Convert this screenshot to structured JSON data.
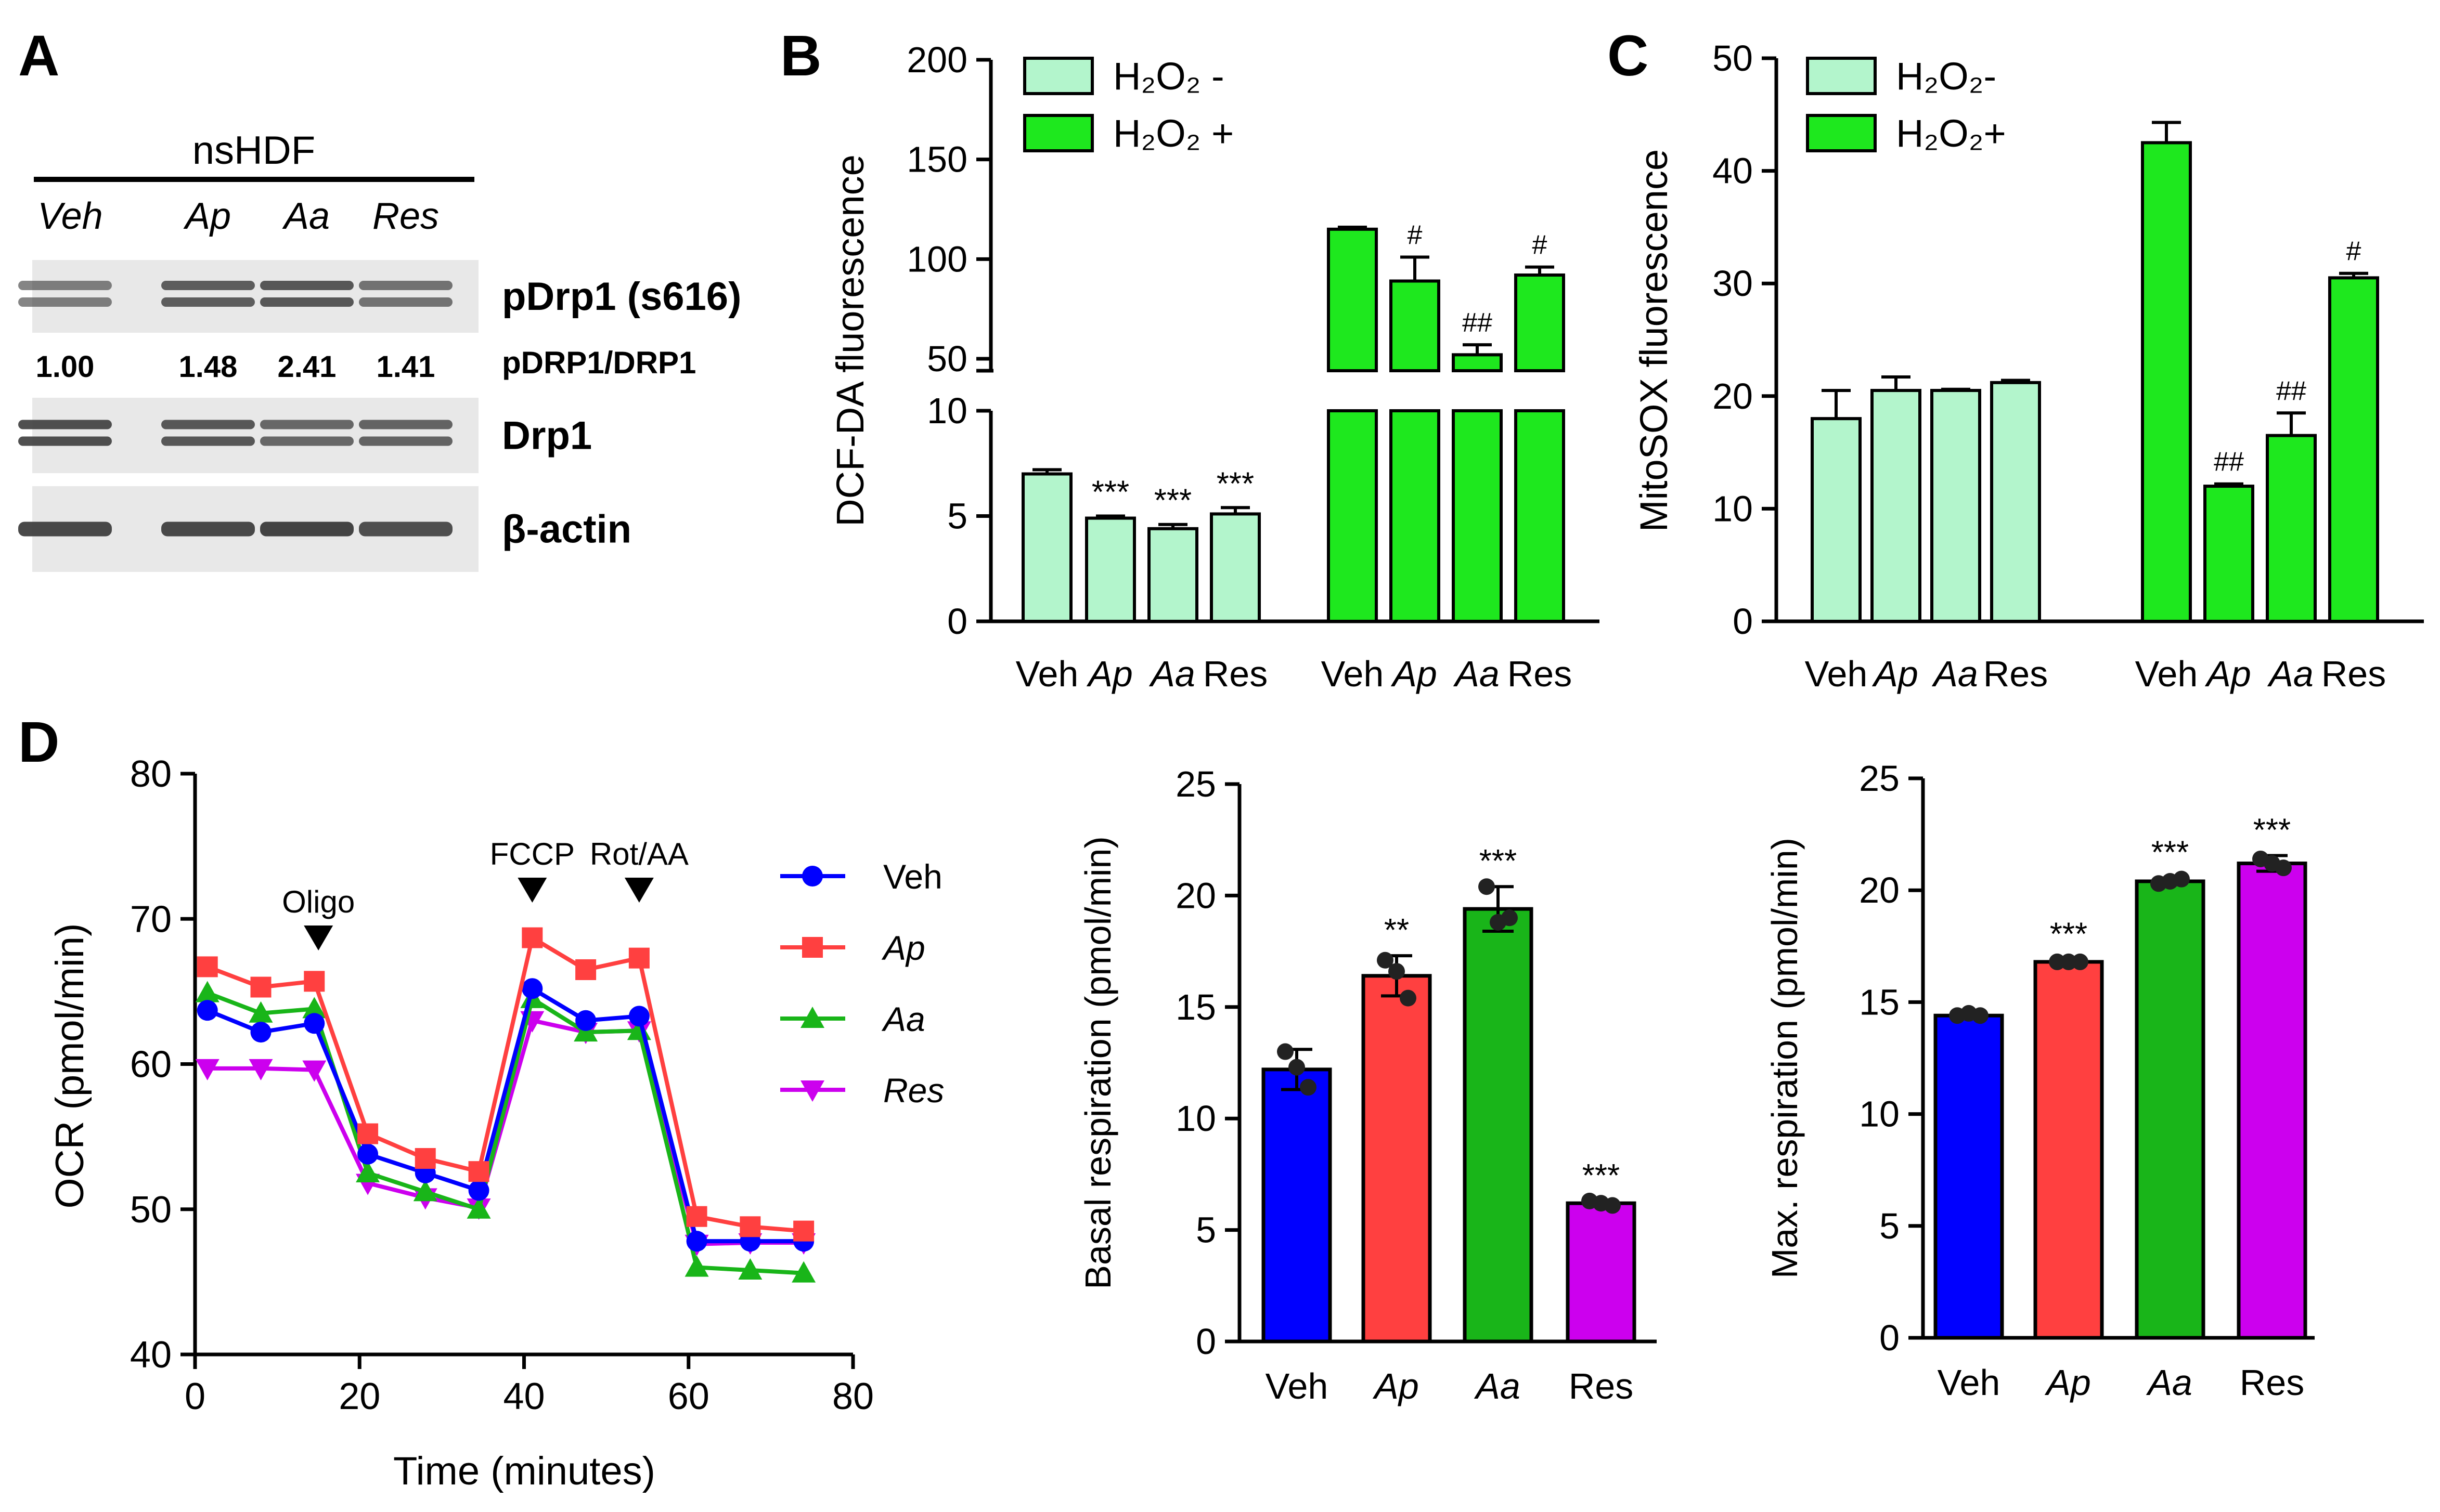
{
  "panel_letters": [
    "A",
    "B",
    "C",
    "D"
  ],
  "colors": {
    "h2o2_minus": "#b3f5cc",
    "h2o2_plus": "#1ee81e",
    "veh": "#0000ff",
    "ap": "#ff4040",
    "aa": "#19b519",
    "res": "#cc00ee",
    "blot_bg": "#e8e8e8",
    "band": "#3a3a3a"
  },
  "panel_a": {
    "cell_line": "nsHDF",
    "lanes": [
      "Veh",
      "Ap",
      "Aa",
      "Res"
    ],
    "rows": [
      {
        "label": "pDrp1 (s616)",
        "band_intensity": [
          0.45,
          0.75,
          0.8,
          0.55
        ]
      },
      {
        "label": "Drp1",
        "band_intensity": [
          0.9,
          0.8,
          0.65,
          0.7
        ]
      },
      {
        "label": "β-actin",
        "band_intensity": [
          0.95,
          0.95,
          1.0,
          0.9
        ]
      }
    ],
    "ratio_label": "pDRP1/DRP1",
    "ratios": [
      "1.00",
      "1.48",
      "2.41",
      "1.41"
    ]
  },
  "chart_data": [
    {
      "panel": "B",
      "type": "bar",
      "ylabel": "DCF-DA fluorescence",
      "y_axis_break": {
        "lower_range": [
          0,
          10
        ],
        "upper_range": [
          35,
          200
        ]
      },
      "yticks_lower": [
        0,
        5,
        10
      ],
      "yticks_upper": [
        50,
        100,
        150,
        200
      ],
      "categories": [
        "Veh",
        "Ap",
        "Aa",
        "Res"
      ],
      "legend": [
        "H₂O₂ -",
        "H₂O₂ +"
      ],
      "legend_position": "top-left",
      "series": [
        {
          "name": "H₂O₂ -",
          "values": [
            7.0,
            4.9,
            4.4,
            5.1
          ],
          "errors": [
            0.2,
            0.1,
            0.2,
            0.3
          ],
          "annotations": [
            "",
            "***",
            "***",
            "***"
          ]
        },
        {
          "name": "H₂O₂ +",
          "values": [
            115,
            89,
            52,
            92
          ],
          "errors": [
            1.0,
            12.0,
            5.0,
            4.0
          ],
          "annotations": [
            "",
            "#",
            "##",
            "#"
          ]
        }
      ]
    },
    {
      "panel": "C",
      "type": "bar",
      "ylabel": "MitoSOX fluorescence",
      "ylim": [
        0,
        50
      ],
      "yticks": [
        0,
        10,
        20,
        30,
        40,
        50
      ],
      "categories": [
        "Veh",
        "Ap",
        "Aa",
        "Res"
      ],
      "legend": [
        "H₂O₂-",
        "H₂O₂+"
      ],
      "legend_position": "top-left",
      "series": [
        {
          "name": "H₂O₂-",
          "values": [
            18.0,
            20.5,
            20.5,
            21.2
          ],
          "errors": [
            2.5,
            1.2,
            0.1,
            0.2
          ],
          "annotations": [
            "",
            "",
            "",
            ""
          ]
        },
        {
          "name": "H₂O₂+",
          "values": [
            42.5,
            12.0,
            16.5,
            30.5
          ],
          "errors": [
            1.8,
            0.2,
            2.0,
            0.4
          ],
          "annotations": [
            "",
            "##",
            "##",
            "#"
          ]
        }
      ]
    },
    {
      "panel": "D",
      "type": "line",
      "xlabel": "Time (minutes)",
      "ylabel": "OCR (pmol/min)",
      "xlim": [
        0,
        80
      ],
      "ylim": [
        40,
        80
      ],
      "xticks": [
        0,
        20,
        40,
        60,
        80
      ],
      "yticks": [
        40,
        50,
        60,
        70,
        80
      ],
      "x": [
        1.5,
        8,
        14.5,
        21,
        28,
        34.5,
        41,
        47.5,
        54,
        61,
        67.5,
        74
      ],
      "injections": [
        {
          "label": "Oligo",
          "x": 15
        },
        {
          "label": "FCCP",
          "x": 41
        },
        {
          "label": "Rot/AA",
          "x": 54
        }
      ],
      "legend_position": "right",
      "series": [
        {
          "name": "Veh",
          "marker": "circle",
          "values": [
            63.7,
            62.2,
            62.8,
            53.8,
            52.5,
            51.3,
            65.2,
            63.0,
            63.3,
            47.8,
            47.8,
            47.8
          ]
        },
        {
          "name": "Ap",
          "marker": "square",
          "values": [
            66.7,
            65.3,
            65.7,
            55.2,
            53.5,
            52.6,
            68.7,
            66.5,
            67.3,
            49.5,
            48.8,
            48.5
          ]
        },
        {
          "name": "Aa",
          "marker": "triangle-up",
          "values": [
            64.9,
            63.5,
            63.8,
            52.5,
            51.2,
            50.0,
            64.5,
            62.2,
            62.3,
            46.0,
            45.8,
            45.6
          ]
        },
        {
          "name": "Res",
          "marker": "triangle-down",
          "values": [
            59.7,
            59.7,
            59.6,
            51.8,
            50.8,
            50.1,
            63.0,
            62.2,
            62.3,
            47.6,
            47.7,
            47.7
          ]
        }
      ]
    },
    {
      "panel": "D-basal",
      "type": "bar",
      "ylabel": "Basal respiration (pmol/min)",
      "ylim": [
        0,
        25
      ],
      "yticks": [
        0,
        5,
        10,
        15,
        20,
        25
      ],
      "categories": [
        "Veh",
        "Ap",
        "Aa",
        "Res"
      ],
      "values": [
        12.2,
        16.4,
        19.4,
        6.2
      ],
      "errors": [
        0.9,
        0.9,
        1.0,
        0.1
      ],
      "points": [
        [
          13.0,
          12.3,
          11.4
        ],
        [
          17.1,
          16.6,
          15.4
        ],
        [
          20.4,
          18.8,
          19.0
        ],
        [
          6.3,
          6.2,
          6.1
        ]
      ],
      "annotations": [
        "",
        "**",
        "***",
        "***"
      ]
    },
    {
      "panel": "D-max",
      "type": "bar",
      "ylabel": "Max. respiration (pmol/min)",
      "ylim": [
        0,
        25
      ],
      "yticks": [
        0,
        5,
        10,
        15,
        20,
        25
      ],
      "categories": [
        "Veh",
        "Ap",
        "Aa",
        "Res"
      ],
      "values": [
        14.4,
        16.8,
        20.4,
        21.2
      ],
      "errors": [
        0.1,
        0.1,
        0.15,
        0.35
      ],
      "points": [
        [
          14.4,
          14.5,
          14.4
        ],
        [
          16.8,
          16.8,
          16.8
        ],
        [
          20.3,
          20.4,
          20.5
        ],
        [
          21.4,
          21.2,
          21.0
        ]
      ],
      "annotations": [
        "",
        "***",
        "***",
        "***"
      ]
    }
  ]
}
